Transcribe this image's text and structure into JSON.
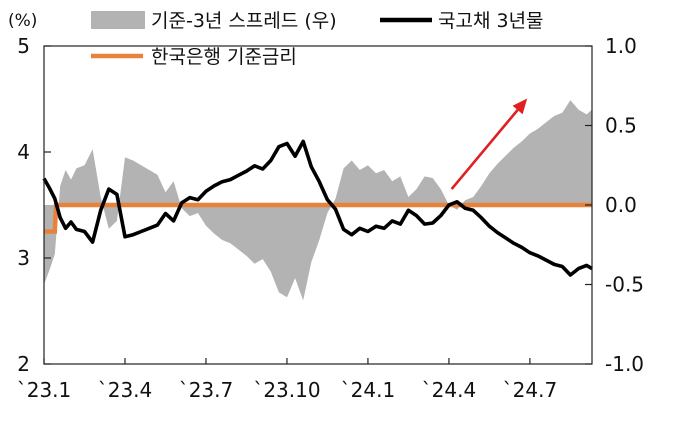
{
  "chart_data": {
    "type": "line",
    "title": "",
    "left_axis": {
      "unit": "(%)",
      "ylim": [
        2,
        5
      ],
      "ticks": [
        "5",
        "4",
        "3",
        "2"
      ]
    },
    "right_axis": {
      "ylim": [
        -1.0,
        1.0
      ],
      "ticks": [
        "1.0",
        "0.5",
        "0.0",
        "-0.5",
        "-1.0"
      ]
    },
    "x_axis": {
      "ticks": [
        "`23.1",
        "`23.4",
        "`23.7",
        "`23.10",
        "`24.1",
        "`24.4",
        "`24.7"
      ],
      "range_months": [
        0,
        20.3
      ]
    },
    "legend": [
      {
        "label": "기준-3년 스프레드 (우)",
        "kind": "area",
        "color": "#b3b3b3"
      },
      {
        "label": "국고채 3년물",
        "kind": "line",
        "color": "#000000"
      },
      {
        "label": "한국은행 기준금리",
        "kind": "line",
        "color": "#e8823a"
      }
    ],
    "series": [
      {
        "name": "국고채 3년물",
        "axis": "left",
        "x": [
          0,
          0.2,
          0.4,
          0.6,
          0.8,
          1.0,
          1.2,
          1.5,
          1.8,
          2.1,
          2.4,
          2.7,
          3.0,
          3.3,
          3.6,
          3.9,
          4.2,
          4.5,
          4.8,
          5.1,
          5.4,
          5.7,
          6.0,
          6.3,
          6.6,
          6.9,
          7.2,
          7.5,
          7.8,
          8.1,
          8.4,
          8.7,
          9.0,
          9.3,
          9.6,
          9.9,
          10.2,
          10.5,
          10.8,
          11.1,
          11.4,
          11.7,
          12.0,
          12.3,
          12.6,
          12.9,
          13.2,
          13.5,
          13.8,
          14.1,
          14.4,
          14.7,
          15.0,
          15.3,
          15.6,
          15.9,
          16.2,
          16.5,
          16.8,
          17.1,
          17.4,
          17.7,
          18.0,
          18.3,
          18.6,
          18.9,
          19.2,
          19.5,
          19.8,
          20.1,
          20.3
        ],
        "values": [
          3.75,
          3.66,
          3.56,
          3.38,
          3.28,
          3.34,
          3.27,
          3.25,
          3.15,
          3.45,
          3.65,
          3.6,
          3.2,
          3.22,
          3.25,
          3.28,
          3.31,
          3.42,
          3.35,
          3.52,
          3.57,
          3.55,
          3.63,
          3.68,
          3.72,
          3.74,
          3.78,
          3.82,
          3.87,
          3.84,
          3.92,
          4.05,
          4.08,
          3.96,
          4.1,
          3.86,
          3.72,
          3.55,
          3.46,
          3.27,
          3.22,
          3.28,
          3.25,
          3.3,
          3.28,
          3.35,
          3.32,
          3.45,
          3.4,
          3.32,
          3.33,
          3.4,
          3.5,
          3.53,
          3.47,
          3.45,
          3.38,
          3.3,
          3.24,
          3.19,
          3.14,
          3.1,
          3.05,
          3.02,
          2.98,
          2.94,
          2.92,
          2.84,
          2.9,
          2.93,
          2.9
        ]
      },
      {
        "name": "한국은행 기준금리",
        "axis": "left",
        "x": [
          0,
          0.4,
          0.45,
          20.3
        ],
        "values": [
          3.25,
          3.25,
          3.5,
          3.5
        ]
      },
      {
        "name": "기준-3년 스프레드 (우)",
        "axis": "right",
        "x": [
          0,
          0.2,
          0.4,
          0.6,
          0.8,
          1.0,
          1.2,
          1.5,
          1.8,
          2.1,
          2.4,
          2.7,
          3.0,
          3.3,
          3.6,
          3.9,
          4.2,
          4.5,
          4.8,
          5.1,
          5.4,
          5.7,
          6.0,
          6.3,
          6.6,
          6.9,
          7.2,
          7.5,
          7.8,
          8.1,
          8.4,
          8.7,
          9.0,
          9.3,
          9.6,
          9.9,
          10.2,
          10.5,
          10.8,
          11.1,
          11.4,
          11.7,
          12.0,
          12.3,
          12.6,
          12.9,
          13.2,
          13.5,
          13.8,
          14.1,
          14.4,
          14.7,
          15.0,
          15.3,
          15.6,
          15.9,
          16.2,
          16.5,
          16.8,
          17.1,
          17.4,
          17.7,
          18.0,
          18.3,
          18.6,
          18.9,
          19.2,
          19.5,
          19.8,
          20.1,
          20.3
        ],
        "values": [
          -0.5,
          -0.41,
          -0.31,
          0.12,
          0.22,
          0.16,
          0.23,
          0.25,
          0.35,
          0.05,
          -0.15,
          -0.1,
          0.3,
          0.28,
          0.25,
          0.22,
          0.19,
          0.08,
          0.15,
          -0.02,
          -0.07,
          -0.05,
          -0.13,
          -0.18,
          -0.22,
          -0.24,
          -0.28,
          -0.32,
          -0.37,
          -0.34,
          -0.42,
          -0.55,
          -0.58,
          -0.46,
          -0.6,
          -0.36,
          -0.22,
          -0.05,
          0.04,
          0.23,
          0.28,
          0.22,
          0.25,
          0.2,
          0.22,
          0.15,
          0.18,
          0.05,
          0.1,
          0.18,
          0.17,
          0.1,
          0.0,
          -0.03,
          0.03,
          0.05,
          0.12,
          0.2,
          0.26,
          0.31,
          0.36,
          0.4,
          0.45,
          0.48,
          0.52,
          0.56,
          0.58,
          0.66,
          0.6,
          0.57,
          0.6
        ]
      }
    ],
    "arrow": {
      "from": [
        15.1,
        0.1
      ],
      "to": [
        17.9,
        0.67
      ],
      "color": "#e02020"
    }
  }
}
